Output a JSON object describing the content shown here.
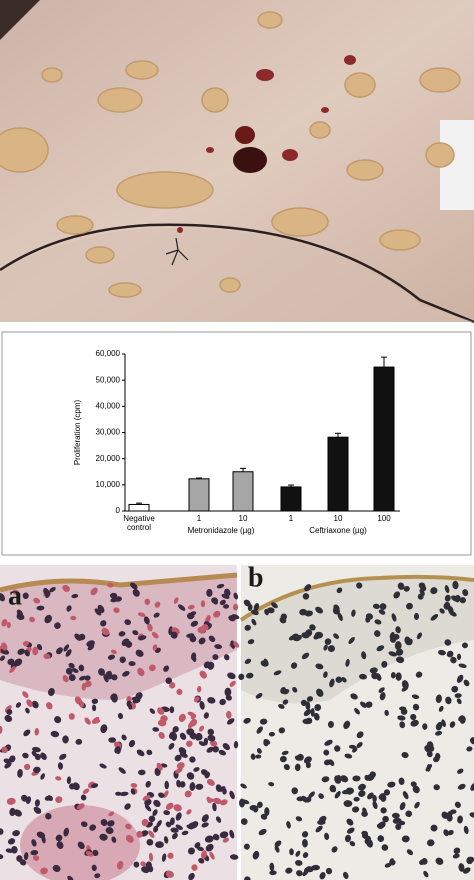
{
  "chart_data": {
    "type": "bar",
    "y_label": "Proliferation (cpm)",
    "categories": [
      "Negative control",
      "1",
      "10",
      "1",
      "10",
      "100"
    ],
    "groups": [
      "Metronidazole (µg)",
      "Ceftriaxone (µg)"
    ],
    "values": [
      2500,
      12300,
      15000,
      9200,
      28200,
      55000
    ],
    "errors": [
      500,
      300,
      1300,
      700,
      1500,
      3800
    ],
    "colors": [
      "#ffffff",
      "#a6a6a6",
      "#a6a6a6",
      "#111111",
      "#111111",
      "#111111"
    ],
    "ylim": [
      0,
      60000
    ],
    "yticks": [
      0,
      {
        "value": 10000,
        "label": "10,000"
      },
      {
        "value": 20000,
        "label": "20,000"
      },
      {
        "value": 30000,
        "label": "30,000"
      },
      {
        "value": 40000,
        "label": "40,000"
      },
      {
        "value": 50000,
        "label": "50,000"
      },
      {
        "value": 60000,
        "label": "60,000"
      }
    ]
  },
  "panels": {
    "a": "a",
    "b": "b"
  }
}
